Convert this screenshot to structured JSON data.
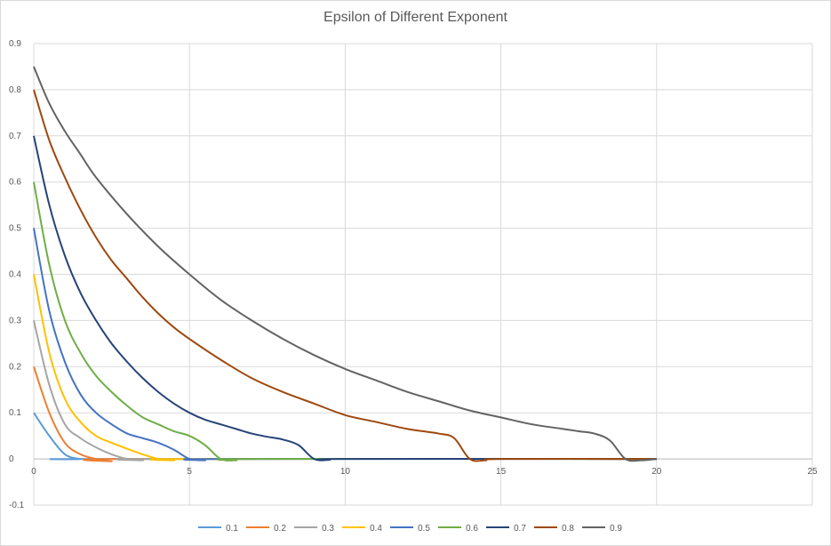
{
  "chart_data": {
    "type": "line",
    "title": "Epsilon of Different Exponent",
    "xlabel": "",
    "ylabel": "",
    "xlim": [
      0,
      25
    ],
    "ylim": [
      -0.1,
      0.9
    ],
    "xticks": [
      0,
      5,
      10,
      15,
      20,
      25
    ],
    "yticks": [
      -0.1,
      0,
      0.1,
      0.2,
      0.3,
      0.4,
      0.5,
      0.6,
      0.7,
      0.8,
      0.9
    ],
    "grid": true,
    "legend": "bottom",
    "series": [
      {
        "name": "0.1",
        "color": "#5b9bd5",
        "points": [
          [
            0,
            0.1
          ],
          [
            0.5,
            0.05
          ],
          [
            1,
            0.01
          ],
          [
            1.5,
            0
          ],
          [
            2,
            0
          ],
          [
            20,
            0
          ]
        ]
      },
      {
        "name": "0.2",
        "color": "#ed7d31",
        "points": [
          [
            0,
            0.2
          ],
          [
            0.5,
            0.1
          ],
          [
            1,
            0.035
          ],
          [
            1.5,
            0.01
          ],
          [
            2,
            0
          ],
          [
            2.5,
            -0.005
          ],
          [
            3,
            0
          ],
          [
            20,
            0
          ]
        ]
      },
      {
        "name": "0.3",
        "color": "#a5a5a5",
        "points": [
          [
            0,
            0.3
          ],
          [
            0.5,
            0.16
          ],
          [
            1,
            0.075
          ],
          [
            1.5,
            0.045
          ],
          [
            2,
            0.025
          ],
          [
            2.5,
            0.01
          ],
          [
            3,
            0
          ],
          [
            3.5,
            -0.003
          ],
          [
            4,
            0
          ],
          [
            20,
            0
          ]
        ]
      },
      {
        "name": "0.4",
        "color": "#ffc000",
        "points": [
          [
            0,
            0.4
          ],
          [
            0.5,
            0.23
          ],
          [
            1,
            0.13
          ],
          [
            1.5,
            0.08
          ],
          [
            2,
            0.05
          ],
          [
            2.5,
            0.035
          ],
          [
            3,
            0.022
          ],
          [
            3.5,
            0.01
          ],
          [
            4,
            0
          ],
          [
            4.5,
            -0.003
          ],
          [
            5,
            0
          ],
          [
            20,
            0
          ]
        ]
      },
      {
        "name": "0.5",
        "color": "#4472c4",
        "points": [
          [
            0,
            0.5
          ],
          [
            0.5,
            0.32
          ],
          [
            1,
            0.21
          ],
          [
            1.5,
            0.14
          ],
          [
            2,
            0.1
          ],
          [
            2.5,
            0.075
          ],
          [
            3,
            0.055
          ],
          [
            3.5,
            0.045
          ],
          [
            4,
            0.035
          ],
          [
            4.5,
            0.02
          ],
          [
            5,
            0
          ],
          [
            5.5,
            -0.003
          ],
          [
            6,
            0
          ],
          [
            20,
            0
          ]
        ]
      },
      {
        "name": "0.6",
        "color": "#70ad47",
        "points": [
          [
            0,
            0.6
          ],
          [
            0.5,
            0.42
          ],
          [
            1,
            0.3
          ],
          [
            1.5,
            0.23
          ],
          [
            2,
            0.18
          ],
          [
            2.5,
            0.145
          ],
          [
            3,
            0.115
          ],
          [
            3.5,
            0.09
          ],
          [
            4,
            0.075
          ],
          [
            4.5,
            0.06
          ],
          [
            5,
            0.05
          ],
          [
            5.5,
            0.03
          ],
          [
            6,
            0
          ],
          [
            6.5,
            -0.003
          ],
          [
            7,
            0
          ],
          [
            20,
            0
          ]
        ]
      },
      {
        "name": "0.7",
        "color": "#264478",
        "points": [
          [
            0,
            0.7
          ],
          [
            0.5,
            0.55
          ],
          [
            1,
            0.44
          ],
          [
            1.5,
            0.36
          ],
          [
            2,
            0.3
          ],
          [
            2.5,
            0.25
          ],
          [
            3,
            0.21
          ],
          [
            3.5,
            0.175
          ],
          [
            4,
            0.145
          ],
          [
            4.5,
            0.12
          ],
          [
            5,
            0.1
          ],
          [
            5.5,
            0.085
          ],
          [
            6,
            0.075
          ],
          [
            6.5,
            0.065
          ],
          [
            7,
            0.055
          ],
          [
            7.5,
            0.048
          ],
          [
            8,
            0.042
          ],
          [
            8.5,
            0.03
          ],
          [
            9,
            0
          ],
          [
            9.5,
            -0.002
          ],
          [
            10,
            0
          ],
          [
            20,
            0
          ]
        ]
      },
      {
        "name": "0.8",
        "color": "#9e480e",
        "points": [
          [
            0,
            0.8
          ],
          [
            0.5,
            0.69
          ],
          [
            1,
            0.61
          ],
          [
            1.5,
            0.54
          ],
          [
            2,
            0.48
          ],
          [
            2.5,
            0.43
          ],
          [
            3,
            0.39
          ],
          [
            3.5,
            0.35
          ],
          [
            4,
            0.315
          ],
          [
            4.5,
            0.285
          ],
          [
            5,
            0.26
          ],
          [
            6,
            0.215
          ],
          [
            7,
            0.175
          ],
          [
            8,
            0.145
          ],
          [
            9,
            0.12
          ],
          [
            10,
            0.095
          ],
          [
            11,
            0.08
          ],
          [
            12,
            0.065
          ],
          [
            13,
            0.055
          ],
          [
            13.5,
            0.045
          ],
          [
            14,
            0
          ],
          [
            14.5,
            -0.003
          ],
          [
            15,
            0
          ],
          [
            20,
            0
          ]
        ]
      },
      {
        "name": "0.9",
        "color": "#636363",
        "points": [
          [
            0,
            0.85
          ],
          [
            0.5,
            0.77
          ],
          [
            1,
            0.71
          ],
          [
            1.5,
            0.66
          ],
          [
            2,
            0.61
          ],
          [
            3,
            0.53
          ],
          [
            4,
            0.46
          ],
          [
            5,
            0.4
          ],
          [
            6,
            0.345
          ],
          [
            7,
            0.3
          ],
          [
            8,
            0.26
          ],
          [
            9,
            0.225
          ],
          [
            10,
            0.195
          ],
          [
            11,
            0.17
          ],
          [
            12,
            0.145
          ],
          [
            13,
            0.125
          ],
          [
            14,
            0.105
          ],
          [
            15,
            0.09
          ],
          [
            16,
            0.075
          ],
          [
            17,
            0.065
          ],
          [
            17.5,
            0.06
          ],
          [
            18,
            0.055
          ],
          [
            18.5,
            0.04
          ],
          [
            19,
            0
          ],
          [
            19.5,
            -0.003
          ],
          [
            20,
            0
          ]
        ]
      }
    ]
  }
}
